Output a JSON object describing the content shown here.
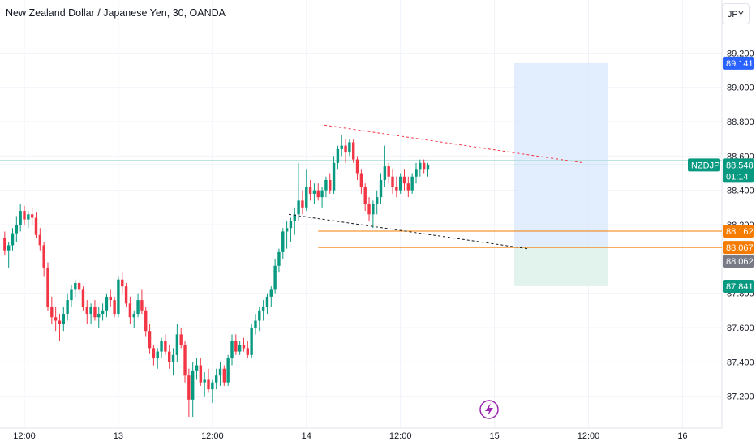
{
  "header": {
    "title": "New Zealand Dollar / Japanese Yen, 30, OANDA",
    "currency_button": "JPY"
  },
  "colors": {
    "up": "#089981",
    "down": "#f23645",
    "grid": "#f0f3fa",
    "text": "#131722",
    "price_line": "#089981",
    "target_zone": "#dbe8fd",
    "stop_zone": "#dff2ec",
    "orange": "#f57c00",
    "blue_label": "#2962ff",
    "gray_label": "#787b86",
    "accent_icon": "#9c27b0"
  },
  "badges": {
    "high": "89.141",
    "symbol": "NZDJPY",
    "last_price": "88.548",
    "countdown": "01:14",
    "orange_top": "88.162",
    "orange_entry": "88.067",
    "gray_price": "88.062",
    "green_stop": "87.841"
  },
  "axis": {
    "ylim": [
      87.08,
      89.32
    ],
    "yticks": [
      "89.200",
      "89.000",
      "88.800",
      "88.600",
      "88.400",
      "88.200",
      "88.000",
      "87.800",
      "87.600",
      "87.400",
      "87.200"
    ],
    "ytick_values": [
      89.2,
      89.0,
      88.8,
      88.6,
      88.4,
      88.2,
      88.0,
      87.8,
      87.6,
      87.4,
      87.2
    ],
    "xticks": [
      "12:00",
      "13",
      "12:00",
      "14",
      "12:00",
      "15",
      "12:00",
      "16"
    ],
    "xtick_bars": [
      0,
      24,
      48,
      72,
      96,
      120,
      144,
      168
    ]
  },
  "chart_data": {
    "type": "candlestick",
    "symbol": "NZDJPY",
    "timeframe": "30",
    "x_start": "12:00",
    "x_start_bar": -5,
    "ohlc": [
      [
        88.12,
        88.16,
        88.02,
        88.05
      ],
      [
        88.05,
        88.1,
        87.95,
        88.08
      ],
      [
        88.08,
        88.18,
        88.05,
        88.15
      ],
      [
        88.15,
        88.25,
        88.1,
        88.2
      ],
      [
        88.2,
        88.32,
        88.16,
        88.28
      ],
      [
        88.28,
        88.31,
        88.2,
        88.23
      ],
      [
        88.23,
        88.28,
        88.18,
        88.26
      ],
      [
        88.26,
        88.3,
        88.2,
        88.24
      ],
      [
        88.24,
        88.27,
        88.12,
        88.14
      ],
      [
        88.14,
        88.18,
        88.05,
        88.08
      ],
      [
        88.08,
        88.1,
        87.9,
        87.95
      ],
      [
        87.95,
        87.98,
        87.7,
        87.72
      ],
      [
        87.72,
        87.78,
        87.62,
        87.66
      ],
      [
        87.66,
        87.72,
        87.58,
        87.64
      ],
      [
        87.64,
        87.68,
        87.52,
        87.62
      ],
      [
        87.62,
        87.72,
        87.58,
        87.68
      ],
      [
        87.68,
        87.8,
        87.64,
        87.76
      ],
      [
        87.76,
        87.85,
        87.72,
        87.82
      ],
      [
        87.82,
        87.88,
        87.78,
        87.86
      ],
      [
        87.86,
        87.88,
        87.8,
        87.82
      ],
      [
        87.82,
        87.84,
        87.7,
        87.72
      ],
      [
        87.72,
        87.76,
        87.62,
        87.68
      ],
      [
        87.68,
        87.74,
        87.62,
        87.72
      ],
      [
        87.72,
        87.76,
        87.64,
        87.66
      ],
      [
        87.66,
        87.72,
        87.6,
        87.68
      ],
      [
        87.68,
        87.74,
        87.64,
        87.7
      ],
      [
        87.7,
        87.8,
        87.66,
        87.78
      ],
      [
        87.78,
        87.82,
        87.72,
        87.76
      ],
      [
        87.76,
        87.78,
        87.66,
        87.68
      ],
      [
        87.68,
        87.9,
        87.66,
        87.88
      ],
      [
        87.88,
        87.92,
        87.8,
        87.84
      ],
      [
        87.84,
        87.86,
        87.72,
        87.74
      ],
      [
        87.74,
        87.78,
        87.62,
        87.66
      ],
      [
        87.66,
        87.7,
        87.6,
        87.68
      ],
      [
        87.68,
        87.8,
        87.66,
        87.76
      ],
      [
        87.76,
        87.82,
        87.68,
        87.7
      ],
      [
        87.7,
        87.72,
        87.55,
        87.58
      ],
      [
        87.58,
        87.62,
        87.45,
        87.48
      ],
      [
        87.48,
        87.5,
        87.38,
        87.42
      ],
      [
        87.42,
        87.48,
        87.36,
        87.46
      ],
      [
        87.46,
        87.54,
        87.42,
        87.52
      ],
      [
        87.52,
        87.56,
        87.44,
        87.46
      ],
      [
        87.46,
        87.5,
        87.36,
        87.4
      ],
      [
        87.4,
        87.48,
        87.32,
        87.44
      ],
      [
        87.44,
        87.62,
        87.4,
        87.56
      ],
      [
        87.56,
        87.6,
        87.48,
        87.5
      ],
      [
        87.5,
        87.52,
        87.28,
        87.32
      ],
      [
        87.32,
        87.36,
        87.08,
        87.18
      ],
      [
        87.18,
        87.4,
        87.08,
        87.35
      ],
      [
        87.35,
        87.42,
        87.3,
        87.38
      ],
      [
        87.38,
        87.42,
        87.26,
        87.28
      ],
      [
        87.28,
        87.34,
        87.2,
        87.3
      ],
      [
        87.3,
        87.36,
        87.22,
        87.24
      ],
      [
        87.24,
        87.3,
        87.16,
        87.28
      ],
      [
        87.28,
        87.36,
        87.24,
        87.32
      ],
      [
        87.32,
        87.4,
        87.26,
        87.36
      ],
      [
        87.36,
        87.38,
        87.26,
        87.28
      ],
      [
        87.28,
        87.44,
        87.26,
        87.42
      ],
      [
        87.42,
        87.56,
        87.38,
        87.52
      ],
      [
        87.52,
        87.56,
        87.44,
        87.46
      ],
      [
        87.46,
        87.52,
        87.44,
        87.5
      ],
      [
        87.5,
        87.54,
        87.46,
        87.48
      ],
      [
        87.48,
        87.52,
        87.42,
        87.44
      ],
      [
        87.44,
        87.62,
        87.42,
        87.6
      ],
      [
        87.6,
        87.68,
        87.56,
        87.64
      ],
      [
        87.64,
        87.72,
        87.58,
        87.7
      ],
      [
        87.7,
        87.76,
        87.64,
        87.72
      ],
      [
        87.72,
        87.8,
        87.68,
        87.78
      ],
      [
        87.78,
        87.84,
        87.72,
        87.82
      ],
      [
        87.82,
        88.0,
        87.8,
        87.96
      ],
      [
        87.96,
        88.06,
        87.92,
        88.04
      ],
      [
        88.04,
        88.18,
        88.0,
        88.16
      ],
      [
        88.16,
        88.22,
        88.06,
        88.18
      ],
      [
        88.18,
        88.24,
        88.1,
        88.22
      ],
      [
        88.22,
        88.3,
        88.14,
        88.26
      ],
      [
        88.26,
        88.56,
        88.22,
        88.34
      ],
      [
        88.34,
        88.4,
        88.26,
        88.3
      ],
      [
        88.3,
        88.52,
        88.28,
        88.42
      ],
      [
        88.42,
        88.46,
        88.34,
        88.38
      ],
      [
        88.38,
        88.44,
        88.32,
        88.4
      ],
      [
        88.4,
        88.44,
        88.34,
        88.36
      ],
      [
        88.36,
        88.42,
        88.3,
        88.4
      ],
      [
        88.4,
        88.48,
        88.36,
        88.46
      ],
      [
        88.46,
        88.5,
        88.38,
        88.4
      ],
      [
        88.4,
        88.6,
        88.38,
        88.56
      ],
      [
        88.56,
        88.66,
        88.52,
        88.64
      ],
      [
        88.64,
        88.72,
        88.6,
        88.66
      ],
      [
        88.66,
        88.7,
        88.56,
        88.62
      ],
      [
        88.62,
        88.7,
        88.6,
        88.68
      ],
      [
        88.68,
        88.7,
        88.56,
        88.58
      ],
      [
        88.58,
        88.6,
        88.46,
        88.5
      ],
      [
        88.5,
        88.52,
        88.38,
        88.42
      ],
      [
        88.42,
        88.44,
        88.28,
        88.32
      ],
      [
        88.32,
        88.36,
        88.22,
        88.26
      ],
      [
        88.26,
        88.34,
        88.18,
        88.32
      ],
      [
        88.32,
        88.4,
        88.26,
        88.36
      ],
      [
        88.36,
        88.5,
        88.32,
        88.46
      ],
      [
        88.46,
        88.66,
        88.42,
        88.54
      ],
      [
        88.54,
        88.56,
        88.44,
        88.48
      ],
      [
        88.48,
        88.52,
        88.38,
        88.42
      ],
      [
        88.42,
        88.48,
        88.36,
        88.4
      ],
      [
        88.4,
        88.5,
        88.38,
        88.48
      ],
      [
        88.48,
        88.52,
        88.4,
        88.44
      ],
      [
        88.44,
        88.48,
        88.36,
        88.4
      ],
      [
        88.4,
        88.5,
        88.38,
        88.48
      ],
      [
        88.48,
        88.56,
        88.44,
        88.52
      ],
      [
        88.52,
        88.58,
        88.48,
        88.56
      ],
      [
        88.56,
        88.58,
        88.5,
        88.52
      ],
      [
        88.52,
        88.56,
        88.48,
        88.548
      ]
    ]
  }
}
